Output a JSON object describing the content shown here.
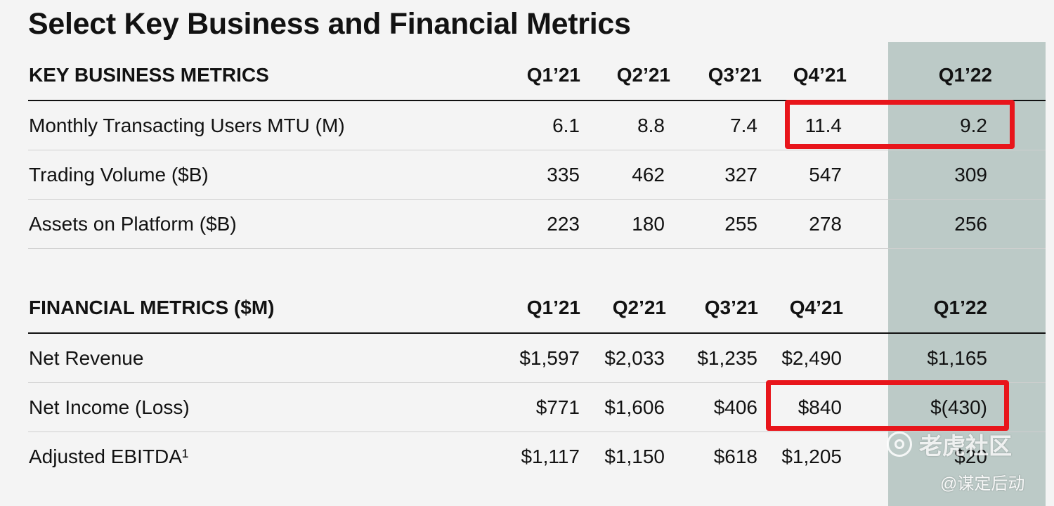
{
  "title": "Select Key Business and Financial Metrics",
  "business": {
    "header": [
      "KEY BUSINESS METRICS",
      "Q1’21",
      "Q2’21",
      "Q3’21",
      "Q4’21",
      "Q1’22"
    ],
    "rows": [
      {
        "label": "Monthly Transacting Users MTU (M)",
        "values": [
          "6.1",
          "8.8",
          "7.4",
          "11.4",
          "9.2"
        ]
      },
      {
        "label": "Trading Volume ($B)",
        "values": [
          "335",
          "462",
          "327",
          "547",
          "309"
        ]
      },
      {
        "label": "Assets on Platform ($B)",
        "values": [
          "223",
          "180",
          "255",
          "278",
          "256"
        ]
      }
    ]
  },
  "financial": {
    "header": [
      "FINANCIAL METRICS ($M)",
      "Q1’21",
      "Q2’21",
      "Q3’21",
      "Q4’21",
      "Q1’22"
    ],
    "rows": [
      {
        "label": "Net Revenue",
        "values": [
          "$1,597",
          "$2,033",
          "$1,235",
          "$2,490",
          "$1,165"
        ]
      },
      {
        "label": "Net Income (Loss)",
        "values": [
          "$771",
          "$1,606",
          "$406",
          "$840",
          "$(430)"
        ]
      },
      {
        "label": "Adjusted EBITDA¹",
        "values": [
          "$1,117",
          "$1,150",
          "$618",
          "$1,205",
          "$20"
        ]
      }
    ]
  },
  "watermark": {
    "brand": "老虎社区",
    "handle": "@谋定后动",
    "icon": "tiger-logo-icon"
  },
  "colors": {
    "highlight_column": "#bccac7",
    "annotation_box": "#e8151b",
    "background": "#f4f4f4"
  }
}
